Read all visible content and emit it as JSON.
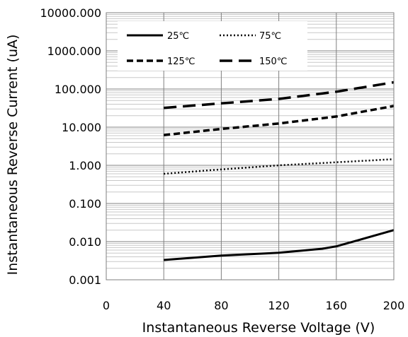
{
  "chart_data": {
    "type": "line",
    "title": "",
    "xlabel": "Instantaneous Reverse Voltage (V)",
    "ylabel": "Instantaneous Reverse Current (uA)",
    "xlim": [
      0,
      200
    ],
    "ylim": [
      0.001,
      10000
    ],
    "y_scale": "log",
    "grid": true,
    "legend_position": "top-left",
    "x_ticks": [
      0,
      40,
      80,
      120,
      160,
      200
    ],
    "x_tick_labels": [
      "0",
      "40",
      "80",
      "120",
      "160",
      "200"
    ],
    "y_ticks": [
      0.001,
      0.01,
      0.1,
      1,
      10,
      100,
      1000,
      10000
    ],
    "y_tick_labels": [
      "0.001",
      "0.010",
      "0.100",
      "1.000",
      "10.000",
      "100.000",
      "1000.000",
      "10000.000"
    ],
    "series": [
      {
        "name": "25℃",
        "dash": "solid",
        "color": "#000000",
        "x": [
          40,
          80,
          120,
          150,
          160,
          200
        ],
        "y": [
          0.0033,
          0.0043,
          0.0051,
          0.0065,
          0.0075,
          0.02
        ]
      },
      {
        "name": "75℃",
        "dash": "dotted",
        "color": "#000000",
        "x": [
          40,
          80,
          120,
          160,
          200
        ],
        "y": [
          0.6,
          0.78,
          1.0,
          1.2,
          1.45
        ]
      },
      {
        "name": "125℃",
        "dash": "short-dash",
        "color": "#000000",
        "x": [
          40,
          80,
          120,
          160,
          200
        ],
        "y": [
          6.2,
          9.0,
          12.5,
          19.0,
          36.0
        ]
      },
      {
        "name": "150℃",
        "dash": "long-dash",
        "color": "#000000",
        "x": [
          40,
          80,
          120,
          160,
          200
        ],
        "y": [
          32,
          42,
          55,
          85,
          150
        ]
      }
    ]
  }
}
